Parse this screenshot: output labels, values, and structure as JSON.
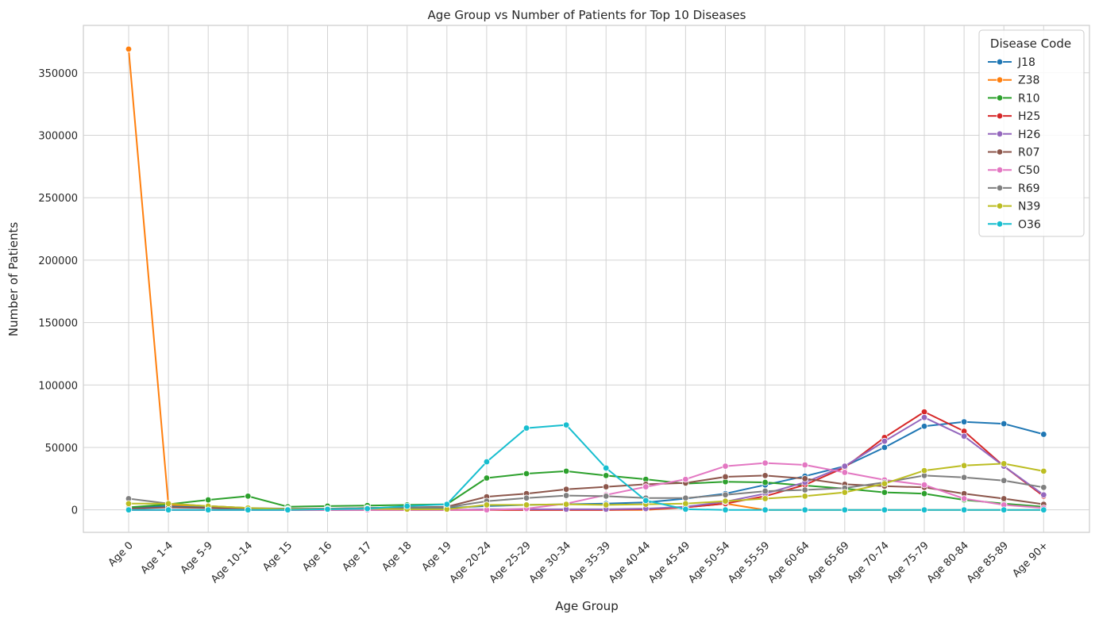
{
  "chart_data": {
    "type": "line",
    "title": "Age Group vs Number of Patients for Top 10 Diseases",
    "xlabel": "Age Group",
    "ylabel": "Number of Patients",
    "ylim": [
      -18000,
      388000
    ],
    "yticks": [
      0,
      50000,
      100000,
      150000,
      200000,
      250000,
      300000,
      350000
    ],
    "grid": true,
    "legend_title": "Disease Code",
    "legend_position": "top-right",
    "categories": [
      "Age 0",
      "Age 1-4",
      "Age 5-9",
      "Age 10-14",
      "Age 15",
      "Age 16",
      "Age 17",
      "Age 18",
      "Age 19",
      "Age 20-24",
      "Age 25-29",
      "Age 30-34",
      "Age 35-39",
      "Age 40-44",
      "Age 45-49",
      "Age 50-54",
      "Age 55-59",
      "Age 60-64",
      "Age 65-69",
      "Age 70-74",
      "Age 75-79",
      "Age 80-84",
      "Age 85-89",
      "Age 90+"
    ],
    "series": [
      {
        "name": "J18",
        "color": "#1f77b4",
        "values": [
          1500,
          3000,
          2000,
          1000,
          500,
          500,
          1000,
          1000,
          1500,
          3000,
          4000,
          4500,
          5000,
          6000,
          9000,
          13000,
          20000,
          27000,
          35000,
          50000,
          67000,
          70500,
          69000,
          60500
        ]
      },
      {
        "name": "Z38",
        "color": "#ff7f0e",
        "values": [
          369000,
          4000,
          3000,
          1500,
          0,
          0,
          0,
          0,
          0,
          0,
          0,
          0,
          0,
          0,
          2000,
          5000,
          0,
          0,
          0,
          0,
          0,
          0,
          0,
          0
        ]
      },
      {
        "name": "R10",
        "color": "#2ca02c",
        "values": [
          2000,
          4500,
          8000,
          11000,
          2500,
          3000,
          3500,
          4000,
          4500,
          25500,
          29000,
          31000,
          27500,
          24500,
          21000,
          22500,
          22000,
          19500,
          17000,
          14000,
          13000,
          8000,
          5000,
          2500
        ]
      },
      {
        "name": "H25",
        "color": "#d62728",
        "values": [
          0,
          0,
          0,
          0,
          0,
          0,
          0,
          0,
          0,
          0,
          0,
          0,
          0,
          500,
          2000,
          5000,
          11000,
          20000,
          34000,
          58000,
          78500,
          63000,
          35000,
          11000
        ]
      },
      {
        "name": "H26",
        "color": "#9467bd",
        "values": [
          0,
          0,
          0,
          0,
          0,
          0,
          0,
          0,
          0,
          500,
          500,
          500,
          500,
          1000,
          2500,
          6500,
          13000,
          22000,
          35000,
          55000,
          74000,
          59000,
          35000,
          12000
        ]
      },
      {
        "name": "R07",
        "color": "#8c564b",
        "values": [
          1000,
          2000,
          1500,
          1000,
          500,
          1000,
          1500,
          2000,
          2500,
          10500,
          13000,
          16500,
          18500,
          20500,
          21500,
          26500,
          27500,
          25000,
          20500,
          19000,
          18000,
          13000,
          9000,
          4500
        ]
      },
      {
        "name": "C50",
        "color": "#e377c2",
        "values": [
          0,
          0,
          0,
          0,
          0,
          0,
          0,
          0,
          0,
          0,
          1000,
          5000,
          12000,
          18500,
          24500,
          35000,
          37500,
          36000,
          30000,
          24000,
          20000,
          9000,
          4000,
          1500
        ]
      },
      {
        "name": "R69",
        "color": "#7f7f7f",
        "values": [
          9000,
          5000,
          3000,
          1500,
          1000,
          1000,
          1500,
          2000,
          2000,
          7000,
          9500,
          11500,
          11000,
          9500,
          9500,
          12000,
          15000,
          16000,
          17500,
          22000,
          27500,
          26000,
          23500,
          18000
        ]
      },
      {
        "name": "N39",
        "color": "#bcbd22",
        "values": [
          5000,
          5000,
          3000,
          1500,
          500,
          500,
          1000,
          500,
          500,
          4000,
          4000,
          4500,
          4000,
          4500,
          5000,
          7000,
          9000,
          11000,
          14000,
          21000,
          31500,
          35500,
          37000,
          31000
        ]
      },
      {
        "name": "O36",
        "color": "#17becf",
        "values": [
          0,
          0,
          0,
          0,
          0,
          500,
          1000,
          3000,
          4500,
          38500,
          65500,
          68000,
          33500,
          7500,
          500,
          0,
          0,
          0,
          0,
          0,
          0,
          0,
          0,
          0
        ]
      }
    ]
  }
}
